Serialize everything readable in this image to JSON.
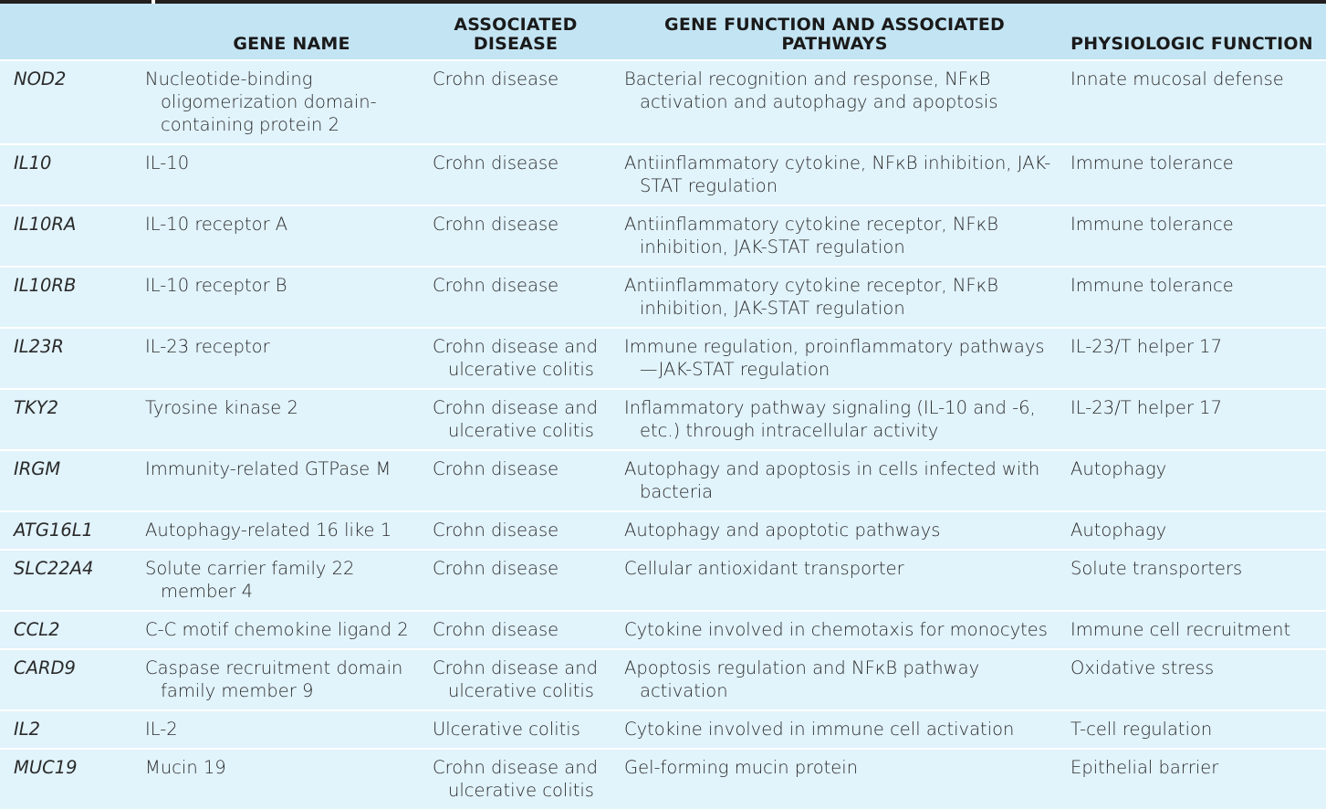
{
  "table": {
    "headers": [
      "",
      "GENE NAME",
      "ASSOCIATED DISEASE",
      "GENE FUNCTION AND ASSOCIATED PATHWAYS",
      "PHYSIOLOGIC FUNCTION"
    ],
    "rows": [
      {
        "gene": "NOD2",
        "name": "Nucleotide-binding oligomerization domain- containing protein 2",
        "disease": "Crohn disease",
        "pathway": "Bacterial recognition and response, NFκB activation and autophagy and apoptosis",
        "physiologic": "Innate mucosal defense"
      },
      {
        "gene": "IL10",
        "name": "IL-10",
        "disease": "Crohn disease",
        "pathway": "Antiinflammatory cytokine, NFκB inhibition, JAK-STAT regulation",
        "physiologic": "Immune tolerance"
      },
      {
        "gene": "IL10RA",
        "name": "IL-10 receptor A",
        "disease": "Crohn disease",
        "pathway": "Antiinflammatory cytokine receptor, NFκB inhibition, JAK-STAT regulation",
        "physiologic": "Immune tolerance"
      },
      {
        "gene": "IL10RB",
        "name": "IL-10 receptor B",
        "disease": "Crohn disease",
        "pathway": "Antiinflammatory cytokine receptor, NFκB inhibition, JAK-STAT regulation",
        "physiologic": "Immune tolerance"
      },
      {
        "gene": "IL23R",
        "name": "IL-23 receptor",
        "disease": "Crohn disease and ulcerative colitis",
        "pathway": "Immune regulation, proinflammatory pathways—JAK-STAT regulation",
        "physiologic": "IL-23/T helper 17"
      },
      {
        "gene": "TKY2",
        "name": "Tyrosine kinase 2",
        "disease": "Crohn disease and ulcerative colitis",
        "pathway": "Inflammatory pathway signaling (IL-10 and -6, etc.) through intracellular activity",
        "physiologic": "IL-23/T helper 17"
      },
      {
        "gene": "IRGM",
        "name": "Immunity-related GTPase M",
        "disease": "Crohn disease",
        "pathway": "Autophagy and apoptosis in cells infected with bacteria",
        "physiologic": "Autophagy"
      },
      {
        "gene": "ATG16L1",
        "name": "Autophagy-related 16 like 1",
        "disease": "Crohn disease",
        "pathway": "Autophagy and apoptotic pathways",
        "physiologic": "Autophagy"
      },
      {
        "gene": "SLC22A4",
        "name": "Solute carrier family 22 member 4",
        "disease": "Crohn disease",
        "pathway": "Cellular antioxidant transporter",
        "physiologic": "Solute transporters"
      },
      {
        "gene": "CCL2",
        "name": "C-C motif chemokine ligand 2",
        "disease": "Crohn disease",
        "pathway": "Cytokine involved in chemotaxis for monocytes",
        "physiologic": "Immune cell recruitment"
      },
      {
        "gene": "CARD9",
        "name": "Caspase recruitment domain family member 9",
        "disease": "Crohn disease and ulcerative colitis",
        "pathway": "Apoptosis regulation and NFκB pathway activation",
        "physiologic": "Oxidative stress"
      },
      {
        "gene": "IL2",
        "name": "IL-2",
        "disease": "Ulcerative colitis",
        "pathway": "Cytokine involved in immune cell activation",
        "physiologic": "T-cell regulation"
      },
      {
        "gene": "MUC19",
        "name": "Mucin 19",
        "disease": "Crohn disease and ulcerative colitis",
        "pathway": "Gel-forming mucin protein",
        "physiologic": "Epithelial barrier"
      }
    ]
  }
}
